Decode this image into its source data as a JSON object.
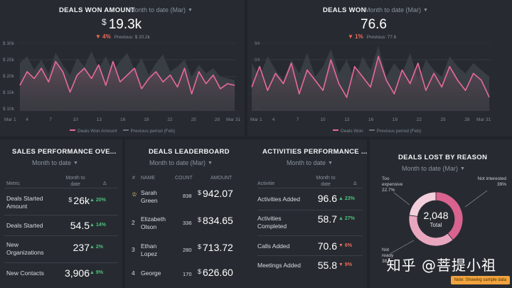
{
  "deals_won_amount": {
    "title": "DEALS WON AMOUNT",
    "period": "Month to date (Mar)",
    "currency": "$",
    "value": "19.3k",
    "delta": "4%",
    "previous": "Previous: $ 20.2k",
    "y_ticks": [
      "$ 30k",
      "$ 25k",
      "$ 20k",
      "$ 15k",
      "$ 10k"
    ],
    "x_ticks": [
      "Mar 1",
      "4",
      "7",
      "10",
      "13",
      "16",
      "19",
      "22",
      "25",
      "28",
      "Mar 31"
    ],
    "legend_current": "Deals Won Amount",
    "legend_previous": "Previous period (Feb)"
  },
  "deals_won": {
    "title": "DEALS WON",
    "period": "Month to date (Mar)",
    "value": "76.6",
    "delta": "1%",
    "previous": "Previous: 77.6",
    "y_ticks": [
      "94",
      "84",
      "74",
      "64",
      "54"
    ],
    "x_ticks": [
      "Mar 1",
      "4",
      "7",
      "10",
      "13",
      "16",
      "19",
      "22",
      "25",
      "28",
      "Mar 31"
    ],
    "legend_current": "Deals Won",
    "legend_previous": "Previous period (Feb)"
  },
  "chart_data": [
    {
      "type": "area",
      "title": "DEALS WON AMOUNT",
      "x": [
        "Mar 1",
        "2",
        "3",
        "4",
        "5",
        "6",
        "7",
        "8",
        "9",
        "10",
        "11",
        "12",
        "13",
        "14",
        "15",
        "16",
        "17",
        "18",
        "19",
        "20",
        "21",
        "22",
        "23",
        "24",
        "25",
        "26",
        "27",
        "28",
        "29",
        "30",
        "Mar 31"
      ],
      "ylim": [
        10000,
        30000
      ],
      "series": [
        {
          "name": "Deals Won Amount",
          "values": [
            17500,
            21500,
            19500,
            22500,
            18500,
            24500,
            21500,
            15500,
            20500,
            22500,
            19500,
            23500,
            17500,
            24500,
            18500,
            20500,
            22500,
            16500,
            19500,
            21500,
            18500,
            20500,
            17000,
            22500,
            15000,
            21500,
            18000,
            20500,
            16500,
            18000,
            17500
          ]
        },
        {
          "name": "Previous period (Feb)",
          "values": [
            24000,
            26000,
            22000,
            25000,
            21000,
            27000,
            23500,
            20500,
            25500,
            23000,
            27500,
            22500,
            26000,
            21500,
            24500,
            27000,
            22000,
            25500,
            20500,
            24000,
            26500,
            21500,
            23000,
            25000,
            20000,
            23500,
            21000,
            22500,
            20000,
            19500,
            19000
          ]
        }
      ]
    },
    {
      "type": "area",
      "title": "DEALS WON",
      "x": [
        "Mar 1",
        "2",
        "3",
        "4",
        "5",
        "6",
        "7",
        "8",
        "9",
        "10",
        "11",
        "12",
        "13",
        "14",
        "15",
        "16",
        "17",
        "18",
        "19",
        "20",
        "21",
        "22",
        "23",
        "24",
        "25",
        "26",
        "27",
        "28",
        "29",
        "30",
        "Mar 31"
      ],
      "ylim": [
        54,
        94
      ],
      "series": [
        {
          "name": "Deals Won",
          "values": [
            68,
            80,
            66,
            76,
            70,
            82,
            64,
            78,
            72,
            66,
            84,
            70,
            62,
            80,
            74,
            68,
            86,
            72,
            64,
            78,
            70,
            82,
            66,
            76,
            68,
            80,
            72,
            66,
            76,
            72,
            62
          ]
        },
        {
          "name": "Previous period (Feb)",
          "values": [
            82,
            74,
            86,
            78,
            72,
            84,
            76,
            88,
            74,
            80,
            90,
            76,
            84,
            72,
            86,
            78,
            92,
            74,
            82,
            76,
            88,
            72,
            84,
            78,
            74,
            86,
            80,
            76,
            82,
            78,
            74
          ]
        }
      ]
    },
    {
      "type": "pie",
      "title": "DEALS LOST BY REASON",
      "categories": [
        "Not interested",
        "Not ready",
        "Too expensive"
      ],
      "values": [
        39,
        38,
        22.7
      ],
      "total": "2,048"
    }
  ],
  "sales_performance": {
    "title": "SALES PERFORMANCE OVE...",
    "period": "Month to date",
    "headers": {
      "metric": "Metric",
      "mtd": "Month to date",
      "delta": "Δ"
    },
    "rows": [
      {
        "metric": "Deals Started Amount",
        "currency": "$",
        "value": "26k",
        "change": "20%",
        "dir": "up"
      },
      {
        "metric": "Deals Started",
        "currency": "",
        "value": "54.5",
        "change": "14%",
        "dir": "up"
      },
      {
        "metric": "New Organizations",
        "currency": "",
        "value": "237",
        "change": "2%",
        "dir": "up"
      },
      {
        "metric": "New Contacts",
        "currency": "",
        "value": "3,906",
        "change": "9%",
        "dir": "up"
      }
    ]
  },
  "leaderboard": {
    "title": "DEALS LEADERBOARD",
    "period": "Month to date (Mar)",
    "headers": {
      "rank": "#",
      "name": "NAME",
      "count": "COUNT",
      "amount": "AMOUNT"
    },
    "rows": [
      {
        "rank": "1",
        "name": "Sarah Green",
        "count": "838",
        "currency": "$",
        "amount": "942.07"
      },
      {
        "rank": "2",
        "name": "Elizabeth Olson",
        "count": "336",
        "currency": "$",
        "amount": "834.65"
      },
      {
        "rank": "3",
        "name": "Ethan Lopez",
        "count": "280",
        "currency": "$",
        "amount": "713.72"
      },
      {
        "rank": "4",
        "name": "George",
        "count": "170",
        "currency": "$",
        "amount": "626.60"
      }
    ]
  },
  "activities": {
    "title": "ACTIVITIES PERFORMANCE ...",
    "period": "Month to date",
    "headers": {
      "activity": "Activitie",
      "mtd": "Month to date",
      "delta": "Δ"
    },
    "rows": [
      {
        "activity": "Activities Added",
        "value": "96.6",
        "change": "23%",
        "dir": "up"
      },
      {
        "activity": "Activities Completed",
        "value": "58.7",
        "change": "27%",
        "dir": "up"
      },
      {
        "activity": "Calls Added",
        "value": "70.6",
        "change": "6%",
        "dir": "down"
      },
      {
        "activity": "Meetings Added",
        "value": "55.8",
        "change": "9%",
        "dir": "down"
      }
    ]
  },
  "deals_lost": {
    "title": "DEALS LOST BY REASON",
    "period": "Month to date (Mar)",
    "total": "2,048",
    "total_label": "Total",
    "labels": [
      {
        "name": "Too expensive",
        "pct": "22.7%"
      },
      {
        "name": "Not interested",
        "pct": "39%"
      },
      {
        "name": "Not ready",
        "pct": "38"
      }
    ]
  },
  "watermark": "知乎 @菩提小祖",
  "note": "Note: Showing sample data",
  "colors": {
    "primary_line": "#e86a9a",
    "previous": "#5d6269",
    "up": "#4ec07d",
    "down": "#f26b5b",
    "donut": [
      "#d9638e",
      "#e9a7bf",
      "#f3cfdc"
    ]
  }
}
